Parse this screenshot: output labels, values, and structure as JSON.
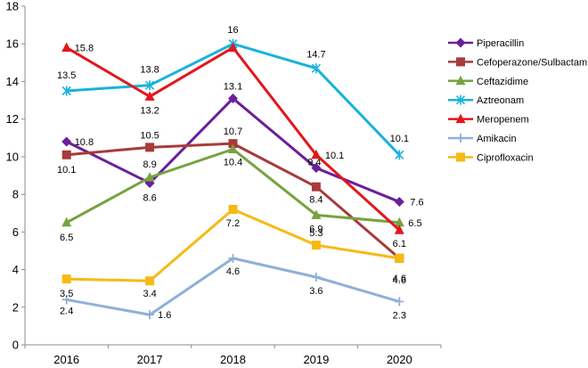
{
  "chart_data": {
    "type": "line",
    "title": "",
    "xlabel": "",
    "ylabel": "",
    "x": [
      "2016",
      "2017",
      "2018",
      "2019",
      "2020"
    ],
    "ylim": [
      0,
      18
    ],
    "yticks": [
      0,
      2,
      4,
      6,
      8,
      10,
      12,
      14,
      16,
      18
    ],
    "grid": false,
    "legend_position": "right",
    "series": [
      {
        "name": "Piperacillin",
        "values": [
          10.8,
          8.6,
          13.1,
          9.4,
          7.6
        ],
        "labels": [
          "10.8",
          "8.6",
          "13.1",
          "9.4",
          "7.6"
        ],
        "color": "#6a1f9a",
        "marker": "diamond"
      },
      {
        "name": "Cefoperazone/Sulbactam",
        "values": [
          10.1,
          10.5,
          10.7,
          8.4,
          4.6
        ],
        "labels": [
          "10.1",
          "10.5",
          "10.7",
          "8.4",
          "4.6"
        ],
        "color": "#a83a3a",
        "marker": "square"
      },
      {
        "name": "Ceftazidime",
        "values": [
          6.5,
          8.9,
          10.4,
          6.9,
          6.5
        ],
        "labels": [
          "6.5",
          "8.9",
          "10.4",
          "6.9",
          "6.5"
        ],
        "color": "#76a33f",
        "marker": "triangle"
      },
      {
        "name": "Aztreonam",
        "values": [
          13.5,
          13.8,
          16,
          14.7,
          10.1
        ],
        "labels": [
          "13.5",
          "13.8",
          "16",
          "14.7",
          "10.1"
        ],
        "color": "#19b2dc",
        "marker": "star"
      },
      {
        "name": "Meropenem",
        "values": [
          15.8,
          13.2,
          15.8,
          10.1,
          6.1
        ],
        "labels": [
          "15.8",
          "13.2",
          "",
          "10.1",
          "6.1"
        ],
        "color": "#e3161c",
        "marker": "triangle"
      },
      {
        "name": "Amikacin",
        "values": [
          2.4,
          1.6,
          4.6,
          3.6,
          2.3
        ],
        "labels": [
          "2.4",
          "1.6",
          "4.6",
          "3.6",
          "2.3"
        ],
        "color": "#8fb0d6",
        "marker": "plus"
      },
      {
        "name": "Ciprofloxacin",
        "values": [
          3.5,
          3.4,
          7.2,
          5.3,
          4.6
        ],
        "labels": [
          "3.5",
          "3.4",
          "7.2",
          "5.3",
          "4.6"
        ],
        "color": "#f7b915",
        "marker": "square"
      }
    ]
  }
}
